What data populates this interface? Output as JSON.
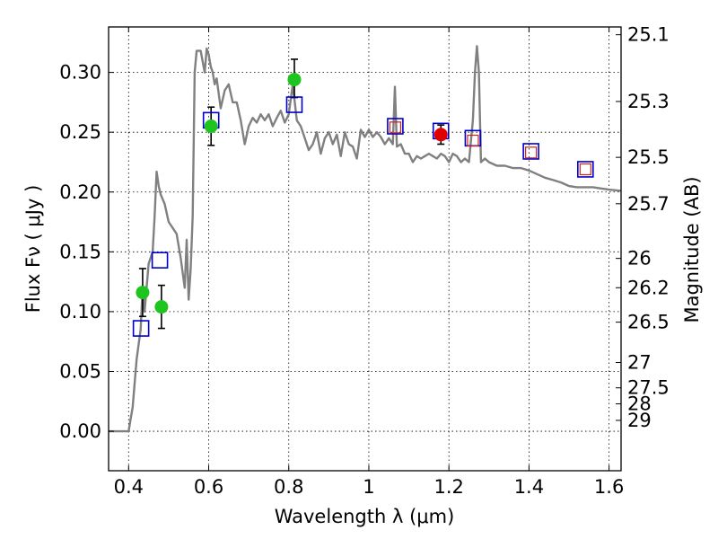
{
  "chart_data": {
    "type": "scatter",
    "xlabel": "Wavelength  λ (μm)",
    "ylabel": "Flux  Fν  ( μJy )",
    "ylabel_right": "Magnitude (AB)",
    "xlim": [
      0.35,
      1.63
    ],
    "ylim": [
      -0.033,
      0.338
    ],
    "grid": true,
    "x_ticks": [
      {
        "value": 0.4,
        "label": "0.4"
      },
      {
        "value": 0.6,
        "label": "0.6"
      },
      {
        "value": 0.8,
        "label": "0.8"
      },
      {
        "value": 1.0,
        "label": "1"
      },
      {
        "value": 1.2,
        "label": "1.2"
      },
      {
        "value": 1.4,
        "label": "1.4"
      },
      {
        "value": 1.6,
        "label": "1.6"
      }
    ],
    "y_ticks": [
      {
        "value": 0.0,
        "label": "0.00"
      },
      {
        "value": 0.05,
        "label": "0.05"
      },
      {
        "value": 0.1,
        "label": "0.10"
      },
      {
        "value": 0.15,
        "label": "0.15"
      },
      {
        "value": 0.2,
        "label": "0.20"
      },
      {
        "value": 0.25,
        "label": "0.25"
      },
      {
        "value": 0.3,
        "label": "0.30"
      }
    ],
    "mag_ticks": [
      {
        "flux": 0.3315,
        "label": "25.1"
      },
      {
        "flux": 0.2757,
        "label": "25.3"
      },
      {
        "flux": 0.229,
        "label": "25.5"
      },
      {
        "flux": 0.1902,
        "label": "25.7"
      },
      {
        "flux": 0.1445,
        "label": "26"
      },
      {
        "flux": 0.12,
        "label": "26.2"
      },
      {
        "flux": 0.0912,
        "label": "26.5"
      },
      {
        "flux": 0.0575,
        "label": "27"
      },
      {
        "flux": 0.0363,
        "label": "27.5"
      },
      {
        "flux": 0.0229,
        "label": "28"
      },
      {
        "flux": 0.0091,
        "label": "29"
      }
    ],
    "series": [
      {
        "name": "model spectrum",
        "kind": "line",
        "color": "#808080",
        "x": [
          0.35,
          0.4,
          0.405,
          0.41,
          0.42,
          0.43,
          0.435,
          0.44,
          0.45,
          0.46,
          0.465,
          0.47,
          0.475,
          0.48,
          0.49,
          0.5,
          0.51,
          0.52,
          0.53,
          0.54,
          0.545,
          0.55,
          0.555,
          0.56,
          0.565,
          0.57,
          0.58,
          0.59,
          0.595,
          0.6,
          0.605,
          0.61,
          0.615,
          0.62,
          0.63,
          0.64,
          0.65,
          0.66,
          0.67,
          0.68,
          0.69,
          0.7,
          0.71,
          0.72,
          0.73,
          0.74,
          0.75,
          0.76,
          0.77,
          0.78,
          0.79,
          0.8,
          0.81,
          0.82,
          0.83,
          0.84,
          0.85,
          0.86,
          0.87,
          0.88,
          0.89,
          0.9,
          0.91,
          0.92,
          0.93,
          0.94,
          0.95,
          0.96,
          0.97,
          0.98,
          0.99,
          1.0,
          1.01,
          1.02,
          1.03,
          1.04,
          1.05,
          1.06,
          1.065,
          1.07,
          1.08,
          1.09,
          1.1,
          1.11,
          1.12,
          1.13,
          1.14,
          1.15,
          1.16,
          1.17,
          1.18,
          1.19,
          1.2,
          1.21,
          1.22,
          1.23,
          1.24,
          1.25,
          1.26,
          1.265,
          1.27,
          1.275,
          1.28,
          1.29,
          1.3,
          1.32,
          1.34,
          1.36,
          1.38,
          1.4,
          1.42,
          1.44,
          1.46,
          1.48,
          1.5,
          1.52,
          1.54,
          1.56,
          1.58,
          1.6,
          1.63
        ],
        "y": [
          0.0,
          0.0,
          0.01,
          0.02,
          0.06,
          0.085,
          0.12,
          0.1,
          0.14,
          0.15,
          0.18,
          0.217,
          0.205,
          0.198,
          0.19,
          0.175,
          0.17,
          0.165,
          0.145,
          0.12,
          0.16,
          0.11,
          0.135,
          0.18,
          0.3,
          0.318,
          0.318,
          0.3,
          0.32,
          0.315,
          0.305,
          0.3,
          0.29,
          0.295,
          0.27,
          0.285,
          0.29,
          0.275,
          0.275,
          0.26,
          0.24,
          0.255,
          0.262,
          0.258,
          0.265,
          0.26,
          0.265,
          0.255,
          0.262,
          0.268,
          0.258,
          0.265,
          0.29,
          0.26,
          0.255,
          0.245,
          0.235,
          0.24,
          0.25,
          0.232,
          0.245,
          0.25,
          0.24,
          0.248,
          0.23,
          0.25,
          0.24,
          0.238,
          0.228,
          0.252,
          0.246,
          0.252,
          0.246,
          0.25,
          0.246,
          0.24,
          0.245,
          0.24,
          0.288,
          0.238,
          0.24,
          0.232,
          0.232,
          0.225,
          0.23,
          0.228,
          0.23,
          0.232,
          0.23,
          0.228,
          0.232,
          0.23,
          0.225,
          0.232,
          0.23,
          0.225,
          0.228,
          0.225,
          0.26,
          0.3,
          0.322,
          0.3,
          0.225,
          0.228,
          0.225,
          0.222,
          0.222,
          0.22,
          0.22,
          0.218,
          0.215,
          0.212,
          0.21,
          0.208,
          0.205,
          0.204,
          0.204,
          0.204,
          0.203,
          0.202,
          0.201
        ]
      },
      {
        "name": "green observed points",
        "kind": "scatter",
        "color": "#1fc51f",
        "points": [
          {
            "x": 0.435,
            "y": 0.116,
            "yerr_low": 0.02,
            "yerr_high": 0.02
          },
          {
            "x": 0.482,
            "y": 0.104,
            "yerr_low": 0.018,
            "yerr_high": 0.018
          },
          {
            "x": 0.606,
            "y": 0.255,
            "yerr_low": 0.016,
            "yerr_high": 0.016
          },
          {
            "x": 0.814,
            "y": 0.294,
            "yerr_low": 0.015,
            "yerr_high": 0.017
          }
        ]
      },
      {
        "name": "red observed point",
        "kind": "scatter",
        "color": "#e00000",
        "points": [
          {
            "x": 1.18,
            "y": 0.248,
            "yerr_low": 0.008,
            "yerr_high": 0.008
          }
        ]
      },
      {
        "name": "blue model squares",
        "kind": "scatter",
        "color": "#0000cc",
        "points": [
          {
            "x": 0.431,
            "y": 0.086
          },
          {
            "x": 0.478,
            "y": 0.143
          },
          {
            "x": 0.606,
            "y": 0.26
          },
          {
            "x": 0.814,
            "y": 0.273
          },
          {
            "x": 1.066,
            "y": 0.255
          },
          {
            "x": 1.18,
            "y": 0.251
          },
          {
            "x": 1.26,
            "y": 0.245
          },
          {
            "x": 1.405,
            "y": 0.234
          },
          {
            "x": 1.541,
            "y": 0.219
          }
        ]
      },
      {
        "name": "red model squares",
        "kind": "scatter",
        "color": "#d02020",
        "points": [
          {
            "x": 1.066,
            "y": 0.254
          },
          {
            "x": 1.26,
            "y": 0.243
          },
          {
            "x": 1.405,
            "y": 0.233
          },
          {
            "x": 1.541,
            "y": 0.219
          }
        ]
      }
    ]
  }
}
